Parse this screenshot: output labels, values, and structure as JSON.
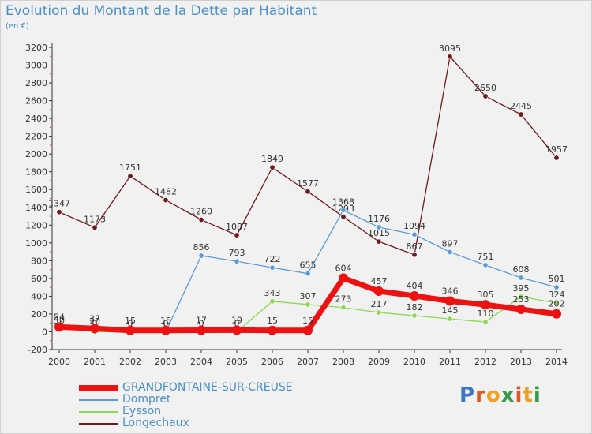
{
  "title": "Evolution du Montant de la Dette par Habitant",
  "unit": "(en €)",
  "logo": {
    "text": "Proxiti"
  },
  "chart_data": {
    "type": "line",
    "title": "Evolution du Montant de la Dette par Habitant",
    "subtitle": "(en €)",
    "xlabel": "",
    "ylabel": "",
    "x": [
      "2000",
      "2001",
      "2002",
      "2003",
      "2004",
      "2005",
      "2006",
      "2007",
      "2008",
      "2009",
      "2010",
      "2011",
      "2012",
      "2013",
      "2014"
    ],
    "ylim": [
      -200,
      3200
    ],
    "yticks": [
      -200,
      0,
      200,
      400,
      600,
      800,
      1000,
      1200,
      1400,
      1600,
      1800,
      2000,
      2200,
      2400,
      2600,
      2800,
      3000,
      3200
    ],
    "grid": false,
    "legend_position": "bottom-left",
    "series": [
      {
        "name": "Longechaux",
        "color": "#6b1a1e",
        "values": [
          1347,
          1173,
          1751,
          1482,
          1260,
          1087,
          1849,
          1577,
          1293,
          1015,
          867,
          3095,
          2650,
          2445,
          1957
        ]
      },
      {
        "name": "Dompret",
        "color": "#5b9bd5",
        "values": [
          30,
          20,
          0,
          0,
          856,
          793,
          722,
          655,
          1368,
          1176,
          1094,
          897,
          751,
          608,
          501
        ]
      },
      {
        "name": "Eysson",
        "color": "#8ed654",
        "values": [
          47,
          0,
          0,
          0,
          0,
          0,
          343,
          307,
          273,
          217,
          182,
          145,
          110,
          395,
          324
        ]
      },
      {
        "name": "GRANDFONTAINE-SUR-CREUSE",
        "color": "#ee1111",
        "values": [
          54,
          37,
          15,
          15,
          17,
          19,
          15,
          15,
          604,
          457,
          404,
          346,
          305,
          253,
          202
        ]
      }
    ]
  },
  "legend": [
    {
      "name": "GRANDFONTAINE-SUR-CREUSE",
      "color": "#ee1111",
      "thick": true
    },
    {
      "name": "Dompret",
      "color": "#5b9bd5",
      "thick": false
    },
    {
      "name": "Eysson",
      "color": "#8ed654",
      "thick": false
    },
    {
      "name": "Longechaux",
      "color": "#6b1a1e",
      "thick": false
    }
  ]
}
